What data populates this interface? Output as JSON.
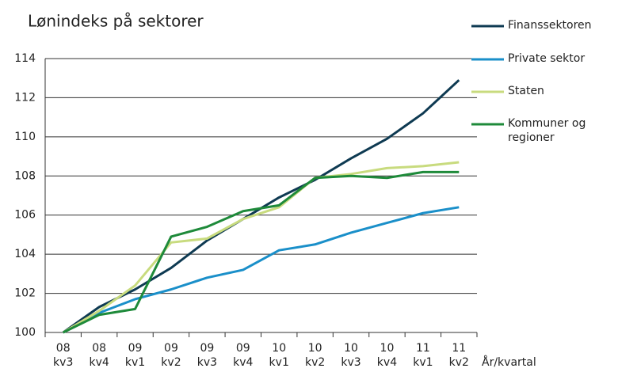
{
  "chart_data": {
    "type": "line",
    "title": "Lønindeks på sektorer",
    "x_label": "År/kvartal",
    "categories": [
      "08 kv3",
      "08 kv4",
      "09 kv1",
      "09 kv2",
      "09 kv3",
      "09 kv4",
      "10 kv1",
      "10 kv2",
      "10 kv3",
      "10 kv4",
      "11 kv1",
      "11 kv2"
    ],
    "series": [
      {
        "name": "Finanssektoren",
        "color": "#0e3a52",
        "values": [
          100,
          101.3,
          102.2,
          103.3,
          104.7,
          105.8,
          106.9,
          107.8,
          108.9,
          109.9,
          111.2,
          112.9
        ]
      },
      {
        "name": "Private sektor",
        "color": "#1a8fc9",
        "values": [
          100,
          101.0,
          101.7,
          102.2,
          102.8,
          103.2,
          104.2,
          104.5,
          105.1,
          105.6,
          106.1,
          106.4
        ]
      },
      {
        "name": "Staten",
        "color": "#c8db7e",
        "values": [
          100,
          101.1,
          102.4,
          104.6,
          104.8,
          105.8,
          106.4,
          107.9,
          108.1,
          108.4,
          108.5,
          108.7
        ]
      },
      {
        "name": "Kommuner og regioner",
        "color": "#1e8a3a",
        "values": [
          100,
          100.9,
          101.2,
          104.9,
          105.4,
          106.2,
          106.5,
          107.9,
          108.0,
          107.9,
          108.2,
          108.2
        ]
      }
    ],
    "ylim": [
      100,
      114
    ],
    "yticks": [
      100,
      102,
      104,
      106,
      108,
      110,
      112,
      114
    ],
    "grid": true,
    "legend": "right"
  }
}
